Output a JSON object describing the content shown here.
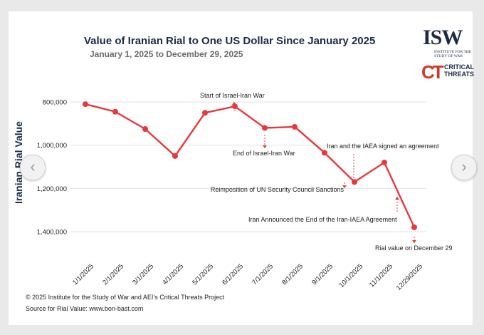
{
  "chart_data": {
    "type": "line",
    "title": "Value of Iranian Rial to One US Dollar Since January 2025",
    "subtitle": "January 1, 2025 to December 29, 2025",
    "ylabel": "Iranian Rial Value",
    "xlabel": "",
    "ylim": [
      760000,
      1420000
    ],
    "y_inverted": true,
    "yticks": [
      800000,
      1000000,
      1200000,
      1400000
    ],
    "ytick_labels": [
      "800,000",
      "1,000,000",
      "1,200,000",
      "1,400,000"
    ],
    "categories": [
      "1/1/2025",
      "2/1/2025",
      "3/1/2025",
      "4/1/2025",
      "5/1/2025",
      "6/1/2025",
      "7/1/2025",
      "8/1/2025",
      "9/1/2025",
      "10/1/2025",
      "11/1/2025",
      "12/29/2025"
    ],
    "values": [
      810000,
      845000,
      925000,
      1050000,
      850000,
      820000,
      920000,
      915000,
      1035000,
      1170000,
      1080000,
      1380000
    ],
    "grid": true,
    "color": "#e8383d",
    "annotations": [
      {
        "text": "Start of Israel-Iran War",
        "arrow": "up"
      },
      {
        "text": "End of Israel-Iran War",
        "arrow": "down"
      },
      {
        "text": "Iran and the IAEA signed an agreement",
        "arrow": "down"
      },
      {
        "text": "Reimposition of UN Security Council Sanctions",
        "arrow": "down"
      },
      {
        "text": "Iran Announced the End of the Iran-IAEA Agreement",
        "arrow": "up"
      },
      {
        "text": "Rial value on December 29",
        "arrow": "down"
      }
    ]
  },
  "footer": {
    "copyright": "© 2025 Institute for the Study of War and AEI’s Critical Threats Project",
    "source": "Source for Rial Value: www.bon-bast.com"
  },
  "logos": {
    "isw": "ISW",
    "isw_sub": "INSTITUTE FOR THE STUDY OF WAR",
    "ct_mark": "CT",
    "ct_text_1": "CRITICAL",
    "ct_text_2": "THREATS"
  },
  "nav": {
    "prev_icon": "chevron-left-icon",
    "next_icon": "chevron-right-icon",
    "prev_glyph": "‹",
    "next_glyph": "›"
  }
}
